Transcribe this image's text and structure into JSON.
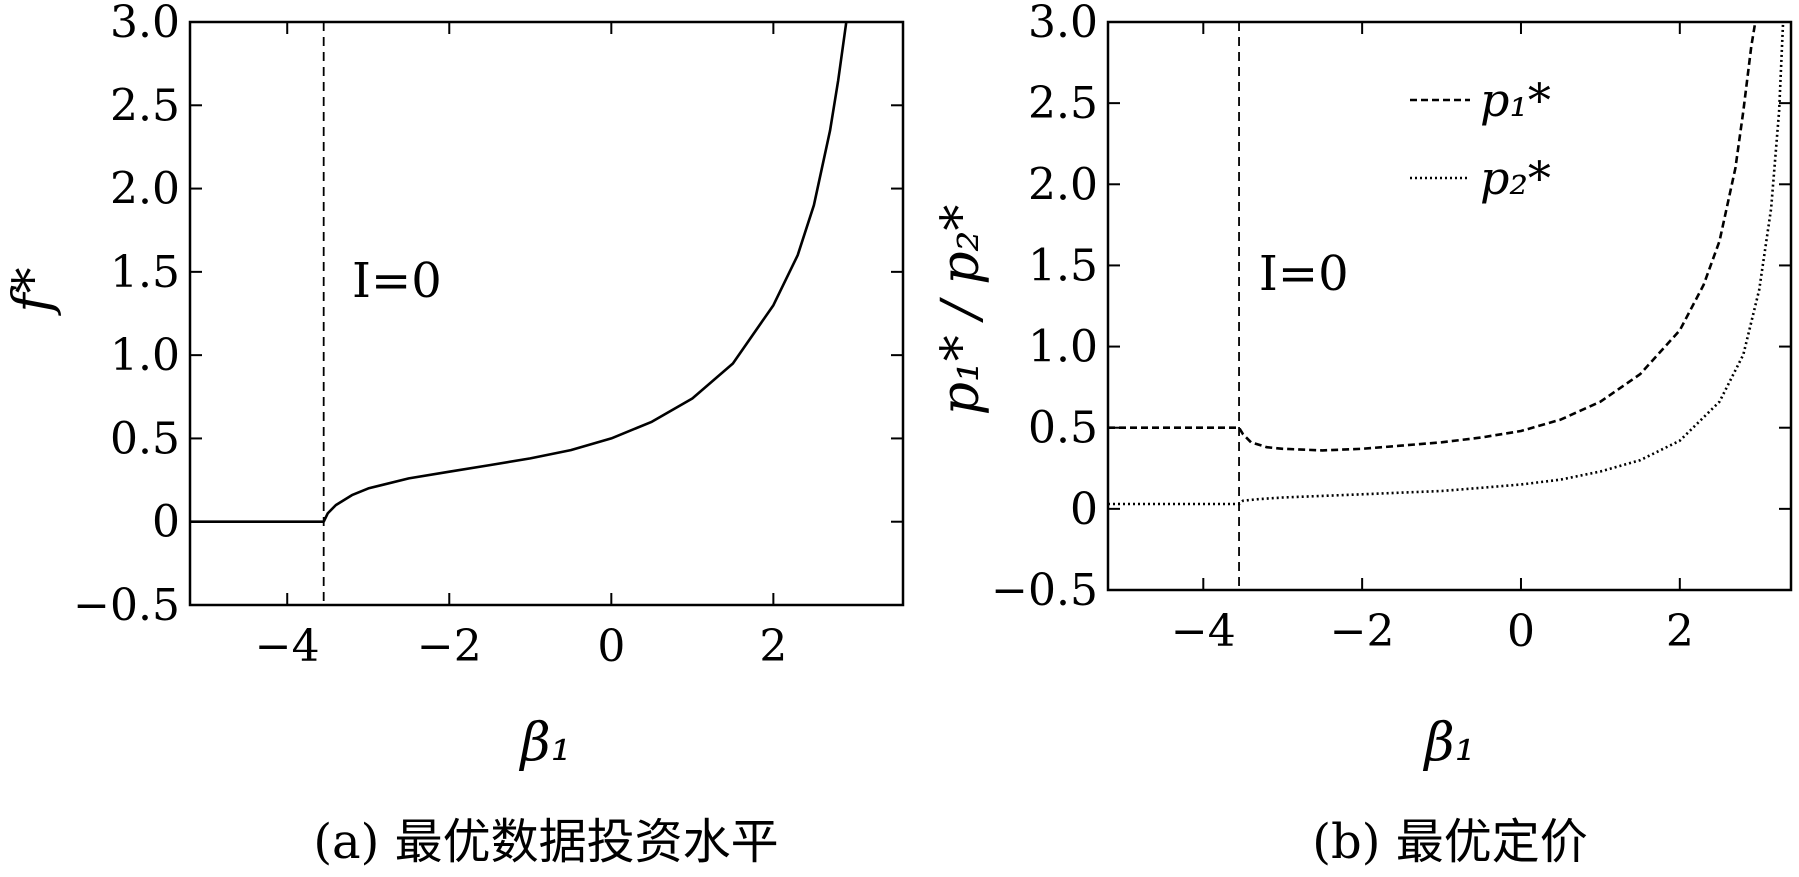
{
  "chart_data": [
    {
      "type": "line",
      "caption": "(a) 最优数据投资水平",
      "xlabel": "β₁",
      "ylabel": "f*",
      "xlim": [
        -5.2,
        3.6
      ],
      "ylim": [
        -0.5,
        3.0
      ],
      "xticks": [
        -4,
        -2,
        0,
        2
      ],
      "xtick_labels": [
        "−4",
        "−2",
        "0",
        "2"
      ],
      "yticks": [
        -0.5,
        0,
        0.5,
        1.0,
        1.5,
        2.0,
        2.5,
        3.0
      ],
      "ytick_labels": [
        "−0.5",
        "0",
        "0.5",
        "1.0",
        "1.5",
        "2.0",
        "2.5",
        "3.0"
      ],
      "grid": false,
      "vline": {
        "x": -3.55,
        "style": "dashed"
      },
      "annotation": {
        "text": "I=0",
        "x": -3.2,
        "y": 1.35
      },
      "series": [
        {
          "style": "solid",
          "x": [
            -5.2,
            -3.55,
            -3.5,
            -3.4,
            -3.2,
            -3.0,
            -2.5,
            -2.0,
            -1.5,
            -1.0,
            -0.5,
            0.0,
            0.5,
            1.0,
            1.5,
            2.0,
            2.3,
            2.5,
            2.7,
            2.8,
            2.9
          ],
          "y": [
            0.0,
            0.0,
            0.05,
            0.1,
            0.16,
            0.2,
            0.26,
            0.3,
            0.34,
            0.38,
            0.43,
            0.5,
            0.6,
            0.74,
            0.95,
            1.3,
            1.6,
            1.9,
            2.35,
            2.65,
            3.0
          ]
        }
      ]
    },
    {
      "type": "line",
      "caption": "(b) 最优定价",
      "xlabel": "β₁",
      "ylabel": "p₁* / p₂*",
      "xlim": [
        -5.2,
        3.4
      ],
      "ylim": [
        -0.5,
        3.0
      ],
      "xticks": [
        -4,
        -2,
        0,
        2
      ],
      "xtick_labels": [
        "−4",
        "−2",
        "0",
        "2"
      ],
      "yticks": [
        -0.5,
        0,
        0.5,
        1.0,
        1.5,
        2.0,
        2.5,
        3.0
      ],
      "ytick_labels": [
        "−0.5",
        "0",
        "0.5",
        "1.0",
        "1.5",
        "2.0",
        "2.5",
        "3.0"
      ],
      "grid": false,
      "legend": "top-right",
      "vline": {
        "x": -3.55,
        "style": "dashed"
      },
      "annotation": {
        "text": "I=0",
        "x": -3.3,
        "y": 1.35
      },
      "series": [
        {
          "name": "p₁*",
          "style": "dashed",
          "x": [
            -5.2,
            -3.55,
            -3.5,
            -3.4,
            -3.2,
            -3.0,
            -2.5,
            -2.0,
            -1.5,
            -1.0,
            -0.5,
            0.0,
            0.5,
            1.0,
            1.5,
            2.0,
            2.3,
            2.5,
            2.7,
            2.8,
            2.9,
            2.95
          ],
          "y": [
            0.5,
            0.5,
            0.46,
            0.41,
            0.38,
            0.37,
            0.36,
            0.37,
            0.39,
            0.41,
            0.44,
            0.48,
            0.55,
            0.66,
            0.83,
            1.1,
            1.38,
            1.65,
            2.1,
            2.45,
            2.85,
            3.0
          ]
        },
        {
          "name": "p₂*",
          "style": "dotted",
          "x": [
            -5.2,
            -3.55,
            -3.5,
            -3.3,
            -3.0,
            -2.5,
            -2.0,
            -1.5,
            -1.0,
            -0.5,
            0.0,
            0.5,
            1.0,
            1.5,
            2.0,
            2.5,
            2.8,
            3.0,
            3.15,
            3.25,
            3.3
          ],
          "y": [
            0.03,
            0.03,
            0.05,
            0.06,
            0.07,
            0.08,
            0.09,
            0.1,
            0.11,
            0.13,
            0.15,
            0.18,
            0.23,
            0.3,
            0.42,
            0.66,
            0.95,
            1.35,
            1.85,
            2.45,
            3.0
          ]
        }
      ]
    }
  ]
}
